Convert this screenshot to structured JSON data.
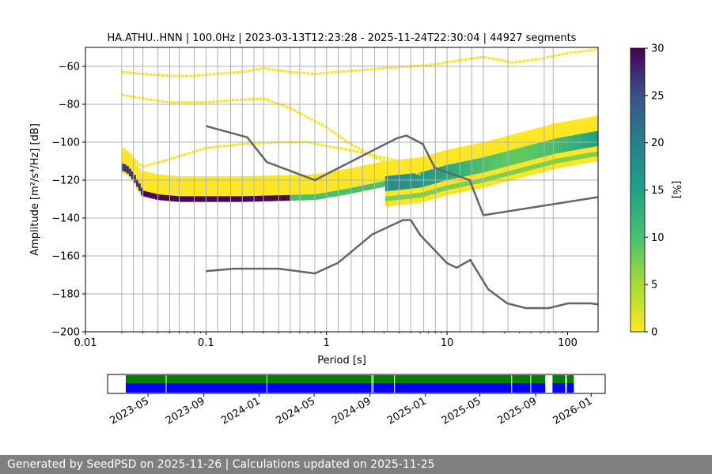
{
  "chart_data": {
    "type": "heatmap",
    "title": "HA.ATHU..HNN | 100.0Hz | 2023-03-13T12:23:28 - 2025-11-24T22:30:04 | 44927 segments",
    "xlabel": "Period [s]",
    "ylabel": "Amplitude [m²/s⁴/Hz] [dB]",
    "xscale": "log",
    "xlim": [
      0.01,
      179
    ],
    "ylim": [
      -200,
      -50
    ],
    "x_ticks": [
      {
        "v": 0.01,
        "label": "0.01"
      },
      {
        "v": 0.1,
        "label": "0.1"
      },
      {
        "v": 1,
        "label": "1"
      },
      {
        "v": 10,
        "label": "10"
      },
      {
        "v": 100,
        "label": "100"
      }
    ],
    "y_ticks": [
      -200,
      -180,
      -160,
      -140,
      -120,
      -100,
      -80,
      -60
    ],
    "vertical_gridlines_periods": [
      0.02,
      0.025,
      0.03,
      0.04,
      0.05,
      0.06,
      0.08,
      0.1,
      0.125,
      0.16,
      0.2,
      0.25,
      0.3,
      0.4,
      0.5,
      0.6,
      0.8,
      1.0,
      1.25,
      1.6,
      2.0,
      2.5,
      3.2,
      4.0,
      5.0,
      6.4,
      8.0,
      10.0,
      12.8,
      16.0,
      20.0,
      32.0,
      64.0,
      76.0
    ],
    "horizontal_grid": true,
    "colorbar": {
      "label": "[%]",
      "min": 0,
      "max": 30,
      "ticks": [
        0,
        5,
        10,
        15,
        20,
        25,
        30
      ],
      "colormap": "viridis"
    },
    "high_noise_model": {
      "x": [
        0.1,
        0.22,
        0.32,
        0.8,
        3.8,
        4.6,
        6.3,
        7.9,
        15.4,
        20,
        354
      ],
      "y": [
        -91.5,
        -97.4,
        -110.5,
        -120,
        -98,
        -96.5,
        -101,
        -113.5,
        -120,
        -138.5,
        -126
      ]
    },
    "low_noise_model": {
      "x": [
        0.1,
        0.17,
        0.4,
        0.8,
        1.24,
        2.4,
        4.3,
        5,
        6,
        10,
        12,
        15.6,
        21.9,
        31.6,
        45,
        70,
        101,
        154,
        328
      ],
      "y": [
        -168,
        -166.7,
        -166.7,
        -169.2,
        -163.7,
        -148.6,
        -141.1,
        -141.1,
        -149,
        -163.8,
        -166.2,
        -162.1,
        -177.5,
        -185,
        -187.5,
        -187.5,
        -185,
        -185,
        -187.5
      ]
    },
    "psd_mode_line": {
      "x": [
        0.02,
        0.022,
        0.025,
        0.03,
        0.04,
        0.06,
        0.1,
        0.2,
        0.4,
        0.8,
        1.5,
        3,
        6,
        10,
        20,
        40,
        80,
        179
      ],
      "y": [
        -113,
        -114,
        -118,
        -127,
        -129,
        -130,
        -130,
        -130,
        -129.5,
        -129,
        -126,
        -122,
        -120,
        -116,
        -112,
        -107,
        -102,
        -98
      ]
    },
    "percentile_outlines": [
      {
        "x": [
          0.02,
          0.03,
          0.05,
          0.08,
          0.12,
          0.2,
          0.3,
          0.5,
          0.8,
          1.2,
          2,
          3,
          5,
          8,
          12,
          20,
          35,
          60,
          100,
          179
        ],
        "y": [
          -63,
          -64,
          -65,
          -65,
          -64,
          -63,
          -61,
          -63,
          -64,
          -63,
          -62,
          -61,
          -60,
          -59,
          -57,
          -55,
          -58,
          -56,
          -53,
          -51
        ]
      },
      {
        "x": [
          0.02,
          0.03,
          0.05,
          0.08,
          0.1,
          0.15,
          0.3,
          0.5,
          0.7,
          1,
          1.5,
          2.5,
          4,
          6
        ],
        "y": [
          -75,
          -77,
          -79,
          -79,
          -79,
          -78,
          -77,
          -82,
          -87,
          -92,
          -100,
          -108,
          -113,
          -117
        ]
      },
      {
        "x": [
          0.02,
          0.03,
          0.05,
          0.1,
          0.2,
          0.4,
          0.7,
          1,
          1.5,
          2.5,
          4
        ],
        "y": [
          -103,
          -113,
          -109,
          -103,
          -101,
          -100,
          -100,
          -102,
          -104,
          -107,
          -110
        ]
      }
    ],
    "availability": {
      "x_ticks": [
        "2023-05",
        "2023-09",
        "2024-01",
        "2024-05",
        "2024-09",
        "2025-01",
        "2025-05",
        "2025-09",
        "2026-01"
      ],
      "start": "2023-03-13",
      "end": "2025-11-24",
      "gaps": [
        {
          "start": "2025-09-22",
          "end": "2025-10-08"
        },
        {
          "start": "2025-11-05",
          "end": "2025-11-07"
        }
      ],
      "markers": [
        "2023-06-10",
        "2024-01-18",
        "2024-09-05",
        "2024-09-08",
        "2024-10-25",
        "2025-07-10",
        "2025-08-21"
      ],
      "colors": {
        "coverage": "#0000ff",
        "processed": "#008000",
        "gap": "#ffffff"
      }
    }
  },
  "footer": {
    "text": "Generated by SeedPSD on 2025-11-26 | Calculations updated on 2025-11-25"
  }
}
